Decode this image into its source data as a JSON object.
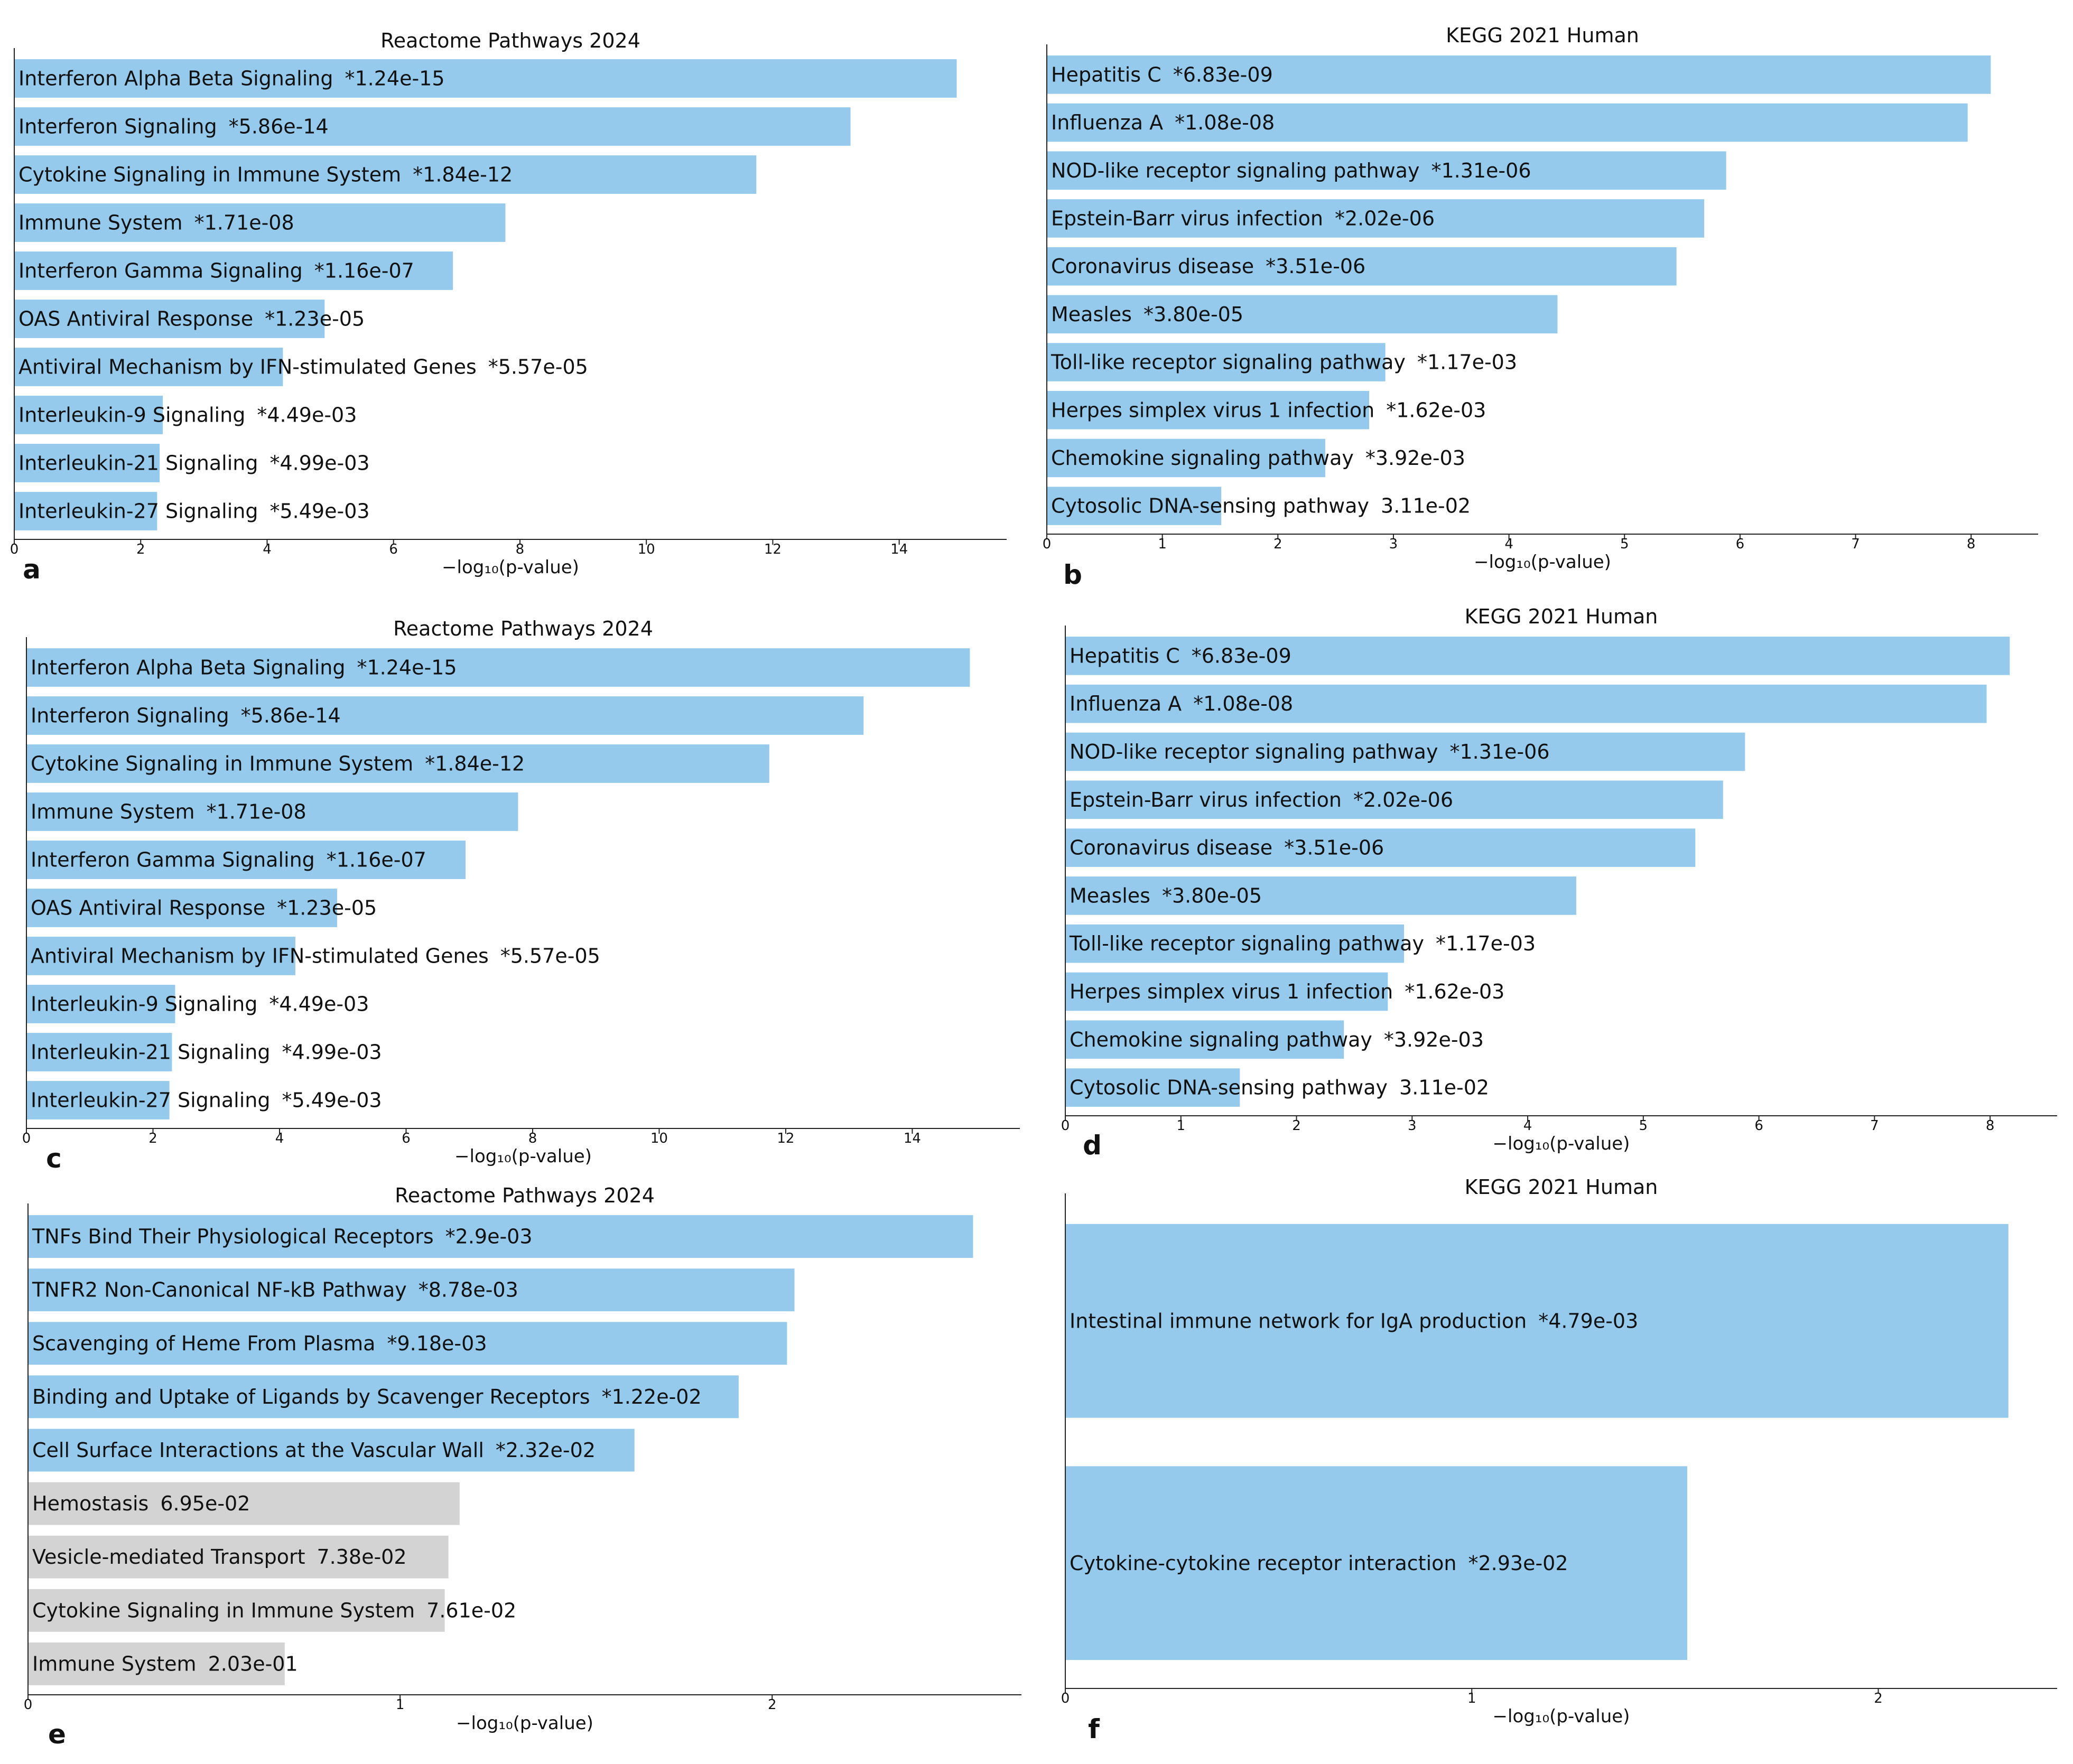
{
  "figure": {
    "colors": {
      "significant": "#95caed",
      "nonsignificant": "#d3d3d3",
      "axis": "#222222",
      "text": "#111111"
    }
  },
  "chart_data": [
    {
      "id": "a",
      "type": "bar",
      "orientation": "horizontal",
      "title": "Reactome Pathways 2024",
      "xlabel": "−log₁₀(p-value)",
      "panel_label": "a",
      "xlim": [
        0,
        15.7
      ],
      "xticks": [
        0,
        2,
        4,
        6,
        8,
        10,
        12,
        14
      ],
      "bars": [
        {
          "term": "Interferon Alpha Beta Signaling",
          "pvalue_label": "*1.24e-15",
          "value": 14.91,
          "significant": true
        },
        {
          "term": "Interferon Signaling",
          "pvalue_label": "*5.86e-14",
          "value": 13.23,
          "significant": true
        },
        {
          "term": "Cytokine Signaling in Immune System",
          "pvalue_label": "*1.84e-12",
          "value": 11.74,
          "significant": true
        },
        {
          "term": "Immune System",
          "pvalue_label": "*1.71e-08",
          "value": 7.77,
          "significant": true
        },
        {
          "term": "Interferon Gamma Signaling",
          "pvalue_label": "*1.16e-07",
          "value": 6.94,
          "significant": true
        },
        {
          "term": "OAS Antiviral Response",
          "pvalue_label": "*1.23e-05",
          "value": 4.91,
          "significant": true
        },
        {
          "term": "Antiviral Mechanism by IFN-stimulated Genes",
          "pvalue_label": "*5.57e-05",
          "value": 4.25,
          "significant": true
        },
        {
          "term": "Interleukin-9 Signaling",
          "pvalue_label": "*4.49e-03",
          "value": 2.35,
          "significant": true
        },
        {
          "term": "Interleukin-21 Signaling",
          "pvalue_label": "*4.99e-03",
          "value": 2.3,
          "significant": true
        },
        {
          "term": "Interleukin-27 Signaling",
          "pvalue_label": "*5.49e-03",
          "value": 2.26,
          "significant": true
        }
      ]
    },
    {
      "id": "b",
      "type": "bar",
      "orientation": "horizontal",
      "title": "KEGG 2021 Human",
      "xlabel": "−log₁₀(p-value)",
      "panel_label": "b",
      "xlim": [
        0,
        8.58
      ],
      "xticks": [
        0,
        1,
        2,
        3,
        4,
        5,
        6,
        7,
        8
      ],
      "bars": [
        {
          "term": "Hepatitis C",
          "pvalue_label": "*6.83e-09",
          "value": 8.17,
          "significant": true
        },
        {
          "term": "Influenza A",
          "pvalue_label": "*1.08e-08",
          "value": 7.97,
          "significant": true
        },
        {
          "term": "NOD-like receptor signaling pathway",
          "pvalue_label": "*1.31e-06",
          "value": 5.88,
          "significant": true
        },
        {
          "term": "Epstein-Barr virus infection",
          "pvalue_label": "*2.02e-06",
          "value": 5.69,
          "significant": true
        },
        {
          "term": "Coronavirus disease",
          "pvalue_label": "*3.51e-06",
          "value": 5.45,
          "significant": true
        },
        {
          "term": "Measles",
          "pvalue_label": "*3.80e-05",
          "value": 4.42,
          "significant": true
        },
        {
          "term": "Toll-like receptor signaling pathway",
          "pvalue_label": "*1.17e-03",
          "value": 2.93,
          "significant": true
        },
        {
          "term": "Herpes simplex virus 1 infection",
          "pvalue_label": "*1.62e-03",
          "value": 2.79,
          "significant": true
        },
        {
          "term": "Chemokine signaling pathway",
          "pvalue_label": "*3.92e-03",
          "value": 2.41,
          "significant": true
        },
        {
          "term": "Cytosolic DNA-sensing pathway",
          "pvalue_label": "3.11e-02",
          "value": 1.51,
          "significant": true
        }
      ]
    },
    {
      "id": "c",
      "type": "bar",
      "orientation": "horizontal",
      "title": "Reactome Pathways 2024",
      "xlabel": "−log₁₀(p-value)",
      "panel_label": "c",
      "xlim": [
        0,
        15.7
      ],
      "xticks": [
        0,
        2,
        4,
        6,
        8,
        10,
        12,
        14
      ],
      "bars": [
        {
          "term": "Interferon Alpha Beta Signaling",
          "pvalue_label": "*1.24e-15",
          "value": 14.91,
          "significant": true
        },
        {
          "term": "Interferon Signaling",
          "pvalue_label": "*5.86e-14",
          "value": 13.23,
          "significant": true
        },
        {
          "term": "Cytokine Signaling in Immune System",
          "pvalue_label": "*1.84e-12",
          "value": 11.74,
          "significant": true
        },
        {
          "term": "Immune System",
          "pvalue_label": "*1.71e-08",
          "value": 7.77,
          "significant": true
        },
        {
          "term": "Interferon Gamma Signaling",
          "pvalue_label": "*1.16e-07",
          "value": 6.94,
          "significant": true
        },
        {
          "term": "OAS Antiviral Response",
          "pvalue_label": "*1.23e-05",
          "value": 4.91,
          "significant": true
        },
        {
          "term": "Antiviral Mechanism by IFN-stimulated Genes",
          "pvalue_label": "*5.57e-05",
          "value": 4.25,
          "significant": true
        },
        {
          "term": "Interleukin-9 Signaling",
          "pvalue_label": "*4.49e-03",
          "value": 2.35,
          "significant": true
        },
        {
          "term": "Interleukin-21 Signaling",
          "pvalue_label": "*4.99e-03",
          "value": 2.3,
          "significant": true
        },
        {
          "term": "Interleukin-27 Signaling",
          "pvalue_label": "*5.49e-03",
          "value": 2.26,
          "significant": true
        }
      ]
    },
    {
      "id": "d",
      "type": "bar",
      "orientation": "horizontal",
      "title": "KEGG 2021 Human",
      "xlabel": "−log₁₀(p-value)",
      "panel_label": "d",
      "xlim": [
        0,
        8.58
      ],
      "xticks": [
        0,
        1,
        2,
        3,
        4,
        5,
        6,
        7,
        8
      ],
      "bars": [
        {
          "term": "Hepatitis C",
          "pvalue_label": "*6.83e-09",
          "value": 8.17,
          "significant": true
        },
        {
          "term": "Influenza A",
          "pvalue_label": "*1.08e-08",
          "value": 7.97,
          "significant": true
        },
        {
          "term": "NOD-like receptor signaling pathway",
          "pvalue_label": "*1.31e-06",
          "value": 5.88,
          "significant": true
        },
        {
          "term": "Epstein-Barr virus infection",
          "pvalue_label": "*2.02e-06",
          "value": 5.69,
          "significant": true
        },
        {
          "term": "Coronavirus disease",
          "pvalue_label": "*3.51e-06",
          "value": 5.45,
          "significant": true
        },
        {
          "term": "Measles",
          "pvalue_label": "*3.80e-05",
          "value": 4.42,
          "significant": true
        },
        {
          "term": "Toll-like receptor signaling pathway",
          "pvalue_label": "*1.17e-03",
          "value": 2.93,
          "significant": true
        },
        {
          "term": "Herpes simplex virus 1 infection",
          "pvalue_label": "*1.62e-03",
          "value": 2.79,
          "significant": true
        },
        {
          "term": "Chemokine signaling pathway",
          "pvalue_label": "*3.92e-03",
          "value": 2.41,
          "significant": true
        },
        {
          "term": "Cytosolic DNA-sensing pathway",
          "pvalue_label": "3.11e-02",
          "value": 1.51,
          "significant": true
        }
      ]
    },
    {
      "id": "e",
      "type": "bar",
      "orientation": "horizontal",
      "title": "Reactome Pathways 2024",
      "xlabel": "−log₁₀(p-value)",
      "panel_label": "e",
      "xlim": [
        0,
        2.67
      ],
      "xticks": [
        0,
        1,
        2
      ],
      "bars": [
        {
          "term": "TNFs Bind Their Physiological Receptors",
          "pvalue_label": "*2.9e-03",
          "value": 2.54,
          "significant": true
        },
        {
          "term": "TNFR2 Non-Canonical NF-kB Pathway",
          "pvalue_label": "*8.78e-03",
          "value": 2.06,
          "significant": true
        },
        {
          "term": "Scavenging of Heme From Plasma",
          "pvalue_label": "*9.18e-03",
          "value": 2.04,
          "significant": true
        },
        {
          "term": "Binding and Uptake of Ligands by Scavenger Receptors",
          "pvalue_label": "*1.22e-02",
          "value": 1.91,
          "significant": true
        },
        {
          "term": "Cell Surface Interactions at the Vascular Wall",
          "pvalue_label": "*2.32e-02",
          "value": 1.63,
          "significant": true
        },
        {
          "term": "Hemostasis",
          "pvalue_label": "6.95e-02",
          "value": 1.16,
          "significant": false
        },
        {
          "term": "Vesicle-mediated Transport",
          "pvalue_label": "7.38e-02",
          "value": 1.13,
          "significant": false
        },
        {
          "term": "Cytokine Signaling in Immune System",
          "pvalue_label": "7.61e-02",
          "value": 1.12,
          "significant": false
        },
        {
          "term": "Immune System",
          "pvalue_label": "2.03e-01",
          "value": 0.69,
          "significant": false
        }
      ]
    },
    {
      "id": "f",
      "type": "bar",
      "orientation": "horizontal",
      "title": "KEGG 2021 Human",
      "xlabel": "−log₁₀(p-value)",
      "panel_label": "f",
      "xlim": [
        0,
        2.44
      ],
      "xticks": [
        0,
        1,
        2
      ],
      "bars": [
        {
          "term": "Intestinal immune network for IgA production",
          "pvalue_label": "*4.79e-03",
          "value": 2.32,
          "significant": true
        },
        {
          "term": "Cytokine-cytokine receptor interaction",
          "pvalue_label": "*2.93e-02",
          "value": 1.53,
          "significant": true
        }
      ]
    }
  ]
}
